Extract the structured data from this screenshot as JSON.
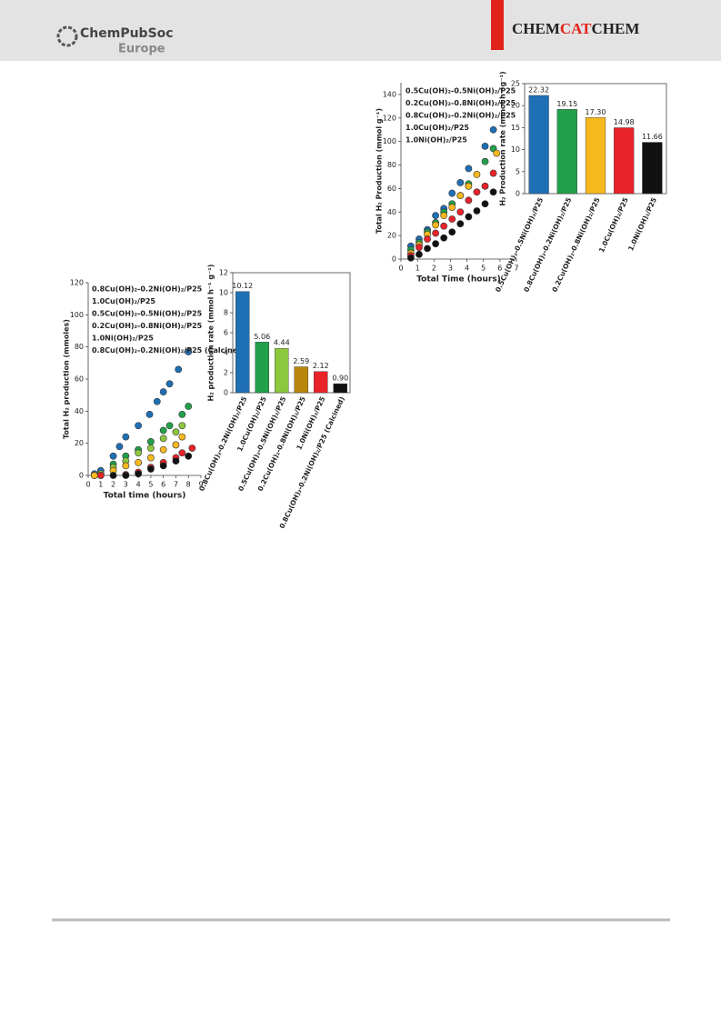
{
  "header": {
    "publisher": "ChemPubSoc",
    "publisher_sub": "Europe",
    "journal": [
      "CHEM",
      "CAT",
      "CHEM"
    ]
  },
  "chart_data": [
    {
      "type": "scatter",
      "x_label": "Total Time (hours)",
      "y_label": "Total H₂ Production (mmol g⁻¹)",
      "xlim": [
        0,
        7
      ],
      "xticks": [
        0,
        1,
        2,
        3,
        4,
        5,
        6,
        7
      ],
      "ylim": [
        0,
        150
      ],
      "yticks": [
        0,
        20,
        40,
        60,
        80,
        100,
        120,
        140
      ],
      "series": [
        {
          "name": "0.5Cu(OH)₂-0.5Ni(OH)₂/P25",
          "color": "#1f6fb5",
          "x": [
            0.6,
            1.1,
            1.6,
            2.1,
            2.6,
            3.1,
            3.6,
            4.1,
            5.1,
            5.6
          ],
          "values": [
            11,
            17,
            25,
            37,
            43,
            56,
            65,
            77,
            96,
            110
          ]
        },
        {
          "name": "0.2Cu(OH)₂-0.8Ni(OH)₂/P25",
          "color": "#22a04b",
          "x": [
            0.6,
            1.1,
            1.6,
            2.1,
            2.6,
            3.1,
            3.6,
            4.1,
            5.1,
            5.6
          ],
          "values": [
            8,
            14,
            23,
            31,
            40,
            47,
            54,
            64,
            83,
            94
          ]
        },
        {
          "name": "0.8Cu(OH)₂-0.2Ni(OH)₂/P25",
          "color": "#f7b81e",
          "x": [
            0.6,
            1.1,
            1.6,
            2.1,
            2.6,
            3.1,
            3.6,
            4.1,
            4.6,
            5.8
          ],
          "values": [
            5,
            12,
            21,
            29,
            37,
            44,
            54,
            62,
            72,
            90
          ]
        },
        {
          "name": "1.0Cu(OH)₂/P25",
          "color": "#e8232a",
          "x": [
            0.6,
            1.1,
            1.6,
            2.1,
            2.6,
            3.1,
            3.6,
            4.1,
            4.6,
            5.1,
            5.6
          ],
          "values": [
            3,
            10,
            17,
            22,
            28,
            34,
            40,
            50,
            57,
            62,
            73
          ]
        },
        {
          "name": "1.0Ni(OH)₂/P25",
          "color": "#111111",
          "x": [
            0.6,
            1.1,
            1.6,
            2.1,
            2.6,
            3.1,
            3.6,
            4.1,
            4.6,
            5.1,
            5.6
          ],
          "values": [
            1,
            4,
            9,
            13,
            18,
            23,
            30,
            36,
            41,
            47,
            57
          ]
        }
      ]
    },
    {
      "type": "bar",
      "y_label": "H₂ Production rate (mmol h⁻¹g⁻¹)",
      "ylim": [
        0,
        25
      ],
      "yticks": [
        0,
        5,
        10,
        15,
        20,
        25
      ],
      "categories": [
        "0.5Cu(OH)₂-0.5Ni(OH)₂/P25",
        "0.8Cu(OH)₂-0.2Ni(OH)₂/P25",
        "0.2Cu(OH)₂-0.8Ni(OH)₂/P25",
        "1.0Cu(OH)₂/P25",
        "1.0Ni(OH)₂/P25"
      ],
      "values": [
        22.32,
        19.15,
        17.3,
        14.98,
        11.66
      ],
      "value_labels": [
        "22.32",
        "19.15",
        "17.30",
        "14.98",
        "11.66"
      ],
      "colors": [
        "#1f6fb5",
        "#22a04b",
        "#f7b81e",
        "#e8232a",
        "#111111"
      ]
    },
    {
      "type": "scatter",
      "x_label": "Total time (hours)",
      "y_label": "Total H₂ production (mmoles)",
      "xlim": [
        0,
        9
      ],
      "xticks": [
        0,
        1,
        2,
        3,
        4,
        5,
        6,
        7,
        8,
        9
      ],
      "ylim": [
        0,
        120
      ],
      "yticks": [
        0,
        20,
        40,
        60,
        80,
        100,
        120
      ],
      "series": [
        {
          "name": "0.8Cu(OH)₂-0.2Ni(OH)₂/P25",
          "color": "#1f6fb5",
          "x": [
            0.5,
            1,
            2,
            2.5,
            3,
            4,
            4.9,
            5.5,
            6,
            6.5,
            7.2,
            8
          ],
          "values": [
            1,
            3,
            12,
            18,
            24,
            31,
            38,
            46,
            52,
            57,
            66,
            77
          ]
        },
        {
          "name": "1.0Cu(OH)₂/P25",
          "color": "#22a04b",
          "x": [
            0.5,
            1,
            2,
            3,
            4,
            5,
            6,
            6.5,
            7.5,
            8
          ],
          "values": [
            0,
            1,
            7,
            12,
            16,
            21,
            28,
            31,
            38,
            43
          ]
        },
        {
          "name": "0.5Cu(OH)₂-0.5Ni(OH)₂/P25",
          "color": "#8dc63f",
          "x": [
            0.5,
            1,
            2,
            3,
            4,
            5,
            6,
            7,
            7.5
          ],
          "values": [
            0,
            1,
            5,
            9,
            14,
            17,
            23,
            27,
            31
          ]
        },
        {
          "name": "0.2Cu(OH)₂-0.8Ni(OH)₂/P25",
          "color": "#f7b81e",
          "x": [
            0.5,
            1,
            2,
            3,
            4,
            5,
            6,
            7,
            7.5
          ],
          "values": [
            0,
            0,
            3,
            6,
            8,
            11,
            16,
            19,
            24
          ]
        },
        {
          "name": "1.0Ni(OH)₂/P25",
          "color": "#e8232a",
          "x": [
            1,
            3,
            4,
            5,
            6,
            7,
            7.5,
            8.3
          ],
          "values": [
            0,
            0.5,
            2,
            5,
            8,
            11,
            14,
            17
          ]
        },
        {
          "name": "0.8Cu(OH)₂-0.2Ni(OH)₂/P25 (Calcined)",
          "color": "#111111",
          "x": [
            2,
            3,
            4,
            5,
            6,
            7,
            8
          ],
          "values": [
            0,
            0,
            1,
            4,
            6,
            9,
            12
          ]
        }
      ]
    },
    {
      "type": "bar",
      "y_label": "H₂ production rate (mmol h⁻¹ g⁻¹)",
      "ylim": [
        0,
        12
      ],
      "yticks": [
        0,
        2,
        4,
        6,
        8,
        10,
        12
      ],
      "categories": [
        "0.8Cu(OH)₂-0.2Ni(OH)₂/P25",
        "1.0Cu(OH)₂/P25",
        "0.5Cu(OH)₂-0.5Ni(OH)₂/P25",
        "0.2Cu(OH)₂-0.8Ni(OH)₂/P25",
        "1.0Ni(OH)₂/P25",
        "0.8Cu(OH)₂-0.2Ni(OH)₂/P25 (Calcined)"
      ],
      "values": [
        10.12,
        5.06,
        4.44,
        2.59,
        2.12,
        0.9
      ],
      "value_labels": [
        "10.12",
        "5.06",
        "4.44",
        "2.59",
        "2.12",
        "0.90"
      ],
      "colors": [
        "#1f6fb5",
        "#22a04b",
        "#8dc63f",
        "#b8860b",
        "#e8232a",
        "#111111"
      ]
    }
  ]
}
